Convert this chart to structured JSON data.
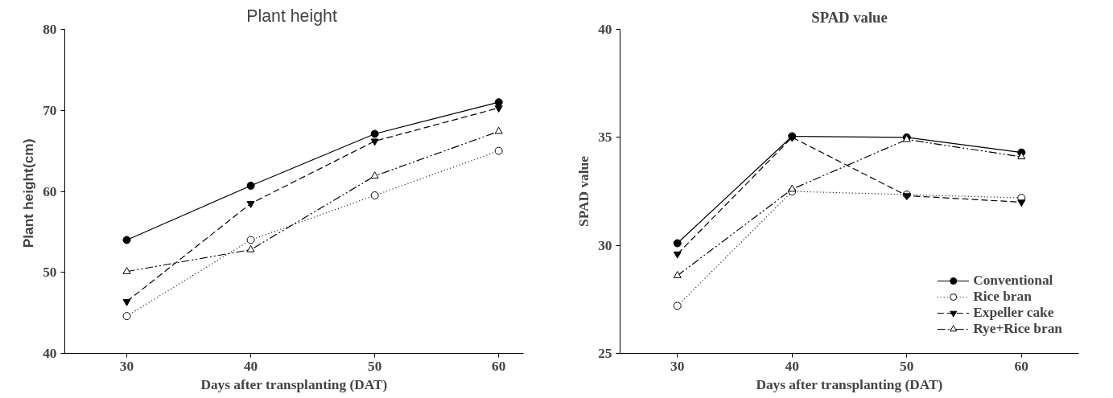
{
  "chart_data": [
    {
      "type": "line",
      "title": "Plant  height",
      "xlabel": "Days after transplanting (DAT)",
      "ylabel": "Plant  height(cm)",
      "x": [
        30,
        40,
        50,
        60
      ],
      "xlim": [
        25,
        62
      ],
      "xticks": [
        30,
        40,
        50,
        60
      ],
      "ylim": [
        40,
        80
      ],
      "yticks": [
        40,
        50,
        60,
        70,
        80
      ],
      "grid": false,
      "legend": false,
      "series": [
        {
          "color": "#000000",
          "values": [
            54.0,
            60.7,
            67.1,
            71.0
          ],
          "marker": "circle",
          "line_style": "solid"
        },
        {
          "color": "#000000",
          "values": [
            44.6,
            54.0,
            59.5,
            65.0
          ],
          "marker": "circle",
          "line_style": "dotted"
        },
        {
          "color": "#000000",
          "values": [
            46.4,
            58.5,
            66.2,
            70.3
          ],
          "marker": "triangle",
          "line_style": "dashed"
        },
        {
          "color": "#000000",
          "values": [
            50.1,
            52.8,
            61.9,
            67.4
          ],
          "marker": "triangle",
          "line_style": "dashdot"
        }
      ]
    },
    {
      "type": "line",
      "title": "SPAD value",
      "xlabel": "Days after transplanting (DAT)",
      "ylabel": "SPAD value",
      "x": [
        30,
        40,
        50,
        60
      ],
      "xlim": [
        25,
        65
      ],
      "xticks": [
        30,
        40,
        50,
        60
      ],
      "ylim": [
        25,
        40
      ],
      "yticks": [
        25,
        30,
        35,
        40
      ],
      "grid": false,
      "legend": "bottom right",
      "series": [
        {
          "name": "Conventional",
          "color": "#000000",
          "values": [
            30.1,
            35.05,
            35.0,
            34.3
          ],
          "marker": "circle",
          "line_style": "solid"
        },
        {
          "name": "Rice bran",
          "color": "#000000",
          "values": [
            27.2,
            32.5,
            32.35,
            32.2
          ],
          "marker": "circle",
          "line_style": "dotted"
        },
        {
          "name": "Expeller cake",
          "color": "#000000",
          "values": [
            29.6,
            35.0,
            32.3,
            32.0
          ],
          "marker": "triangle",
          "line_style": "dashed"
        },
        {
          "name": "Rye+Rice bran",
          "color": "#000000",
          "values": [
            28.6,
            32.6,
            34.9,
            34.1
          ],
          "marker": "triangle",
          "line_style": "dashdot"
        }
      ]
    }
  ]
}
